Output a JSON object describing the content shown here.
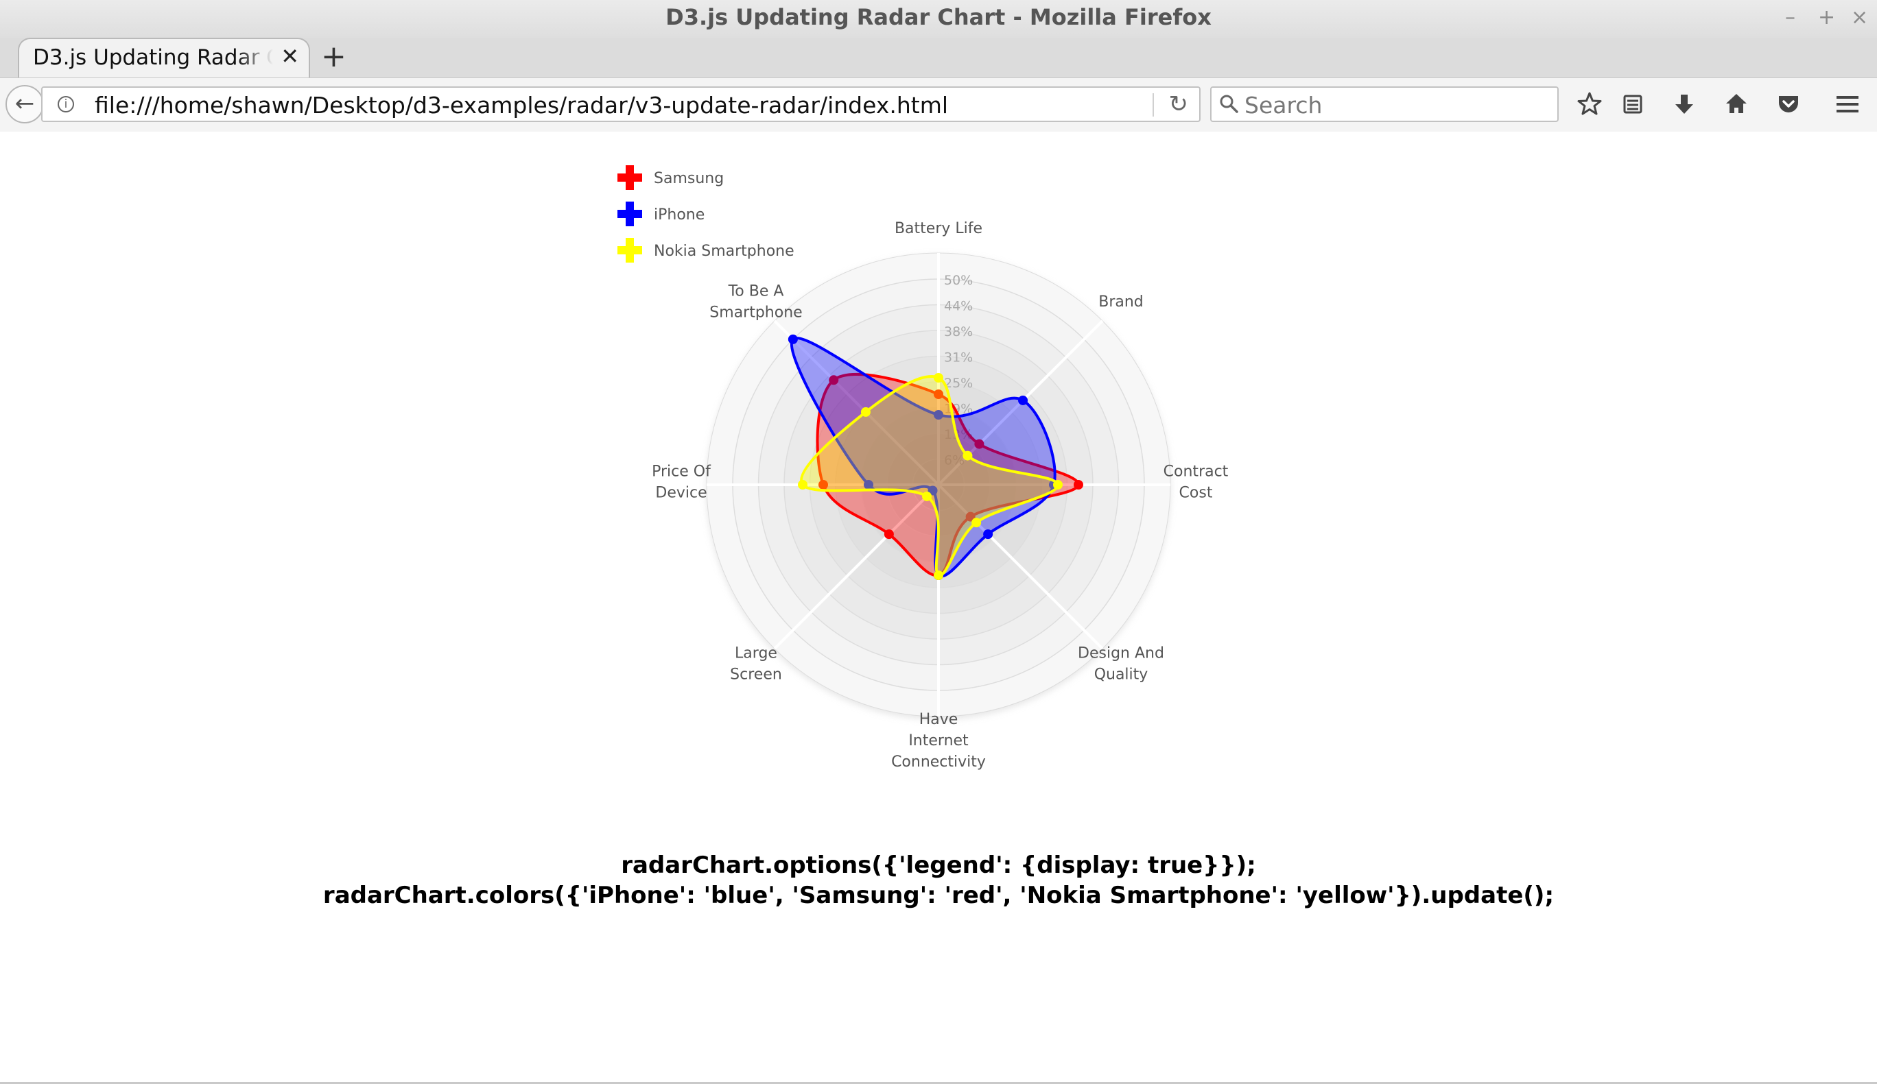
{
  "window": {
    "title": "D3.js Updating Radar Chart - Mozilla Firefox",
    "minimize_glyph": "–",
    "maximize_glyph": "+",
    "close_glyph": "×"
  },
  "tabs": [
    {
      "label": "D3.js Updating Radar Chart",
      "close_glyph": "✕"
    }
  ],
  "new_tab_glyph": "+",
  "navbar": {
    "back_glyph": "←",
    "url": "file:///home/shawn/Desktop/d3-examples/radar/v3-update-radar/index.html",
    "reload_glyph": "↻",
    "search_placeholder": "Search",
    "toolbar_icons": [
      "star-icon",
      "reading-list-icon",
      "download-icon",
      "home-icon",
      "pocket-icon",
      "menu-icon"
    ]
  },
  "chart_data": {
    "type": "radar",
    "axes": [
      "Battery Life",
      "Brand",
      "Contract Cost",
      "Design And Quality",
      "Have Internet Connectivity",
      "Large Screen",
      "Price Of Device",
      "To Be A Smartphone"
    ],
    "ticks": [
      "6%",
      "13%",
      "19%",
      "25%",
      "31%",
      "38%",
      "44%",
      "50%"
    ],
    "max": 0.5,
    "legend_position": "top-left",
    "series": [
      {
        "name": "Samsung",
        "color": "#ff0000",
        "values": [
          0.22,
          0.14,
          0.34,
          0.11,
          0.22,
          0.17,
          0.28,
          0.36
        ]
      },
      {
        "name": "iPhone",
        "color": "#0000ff",
        "values": [
          0.17,
          0.29,
          0.28,
          0.17,
          0.22,
          0.02,
          0.17,
          0.5
        ]
      },
      {
        "name": "Nokia Smartphone",
        "color": "#ffff00",
        "values": [
          0.26,
          0.1,
          0.29,
          0.13,
          0.22,
          0.04,
          0.33,
          0.25
        ]
      }
    ]
  },
  "code": {
    "line1": "radarChart.options({'legend': {display: true}});",
    "line2": "radarChart.colors({'iPhone': 'blue', 'Samsung': 'red', 'Nokia Smartphone': 'yellow'}).update();"
  }
}
